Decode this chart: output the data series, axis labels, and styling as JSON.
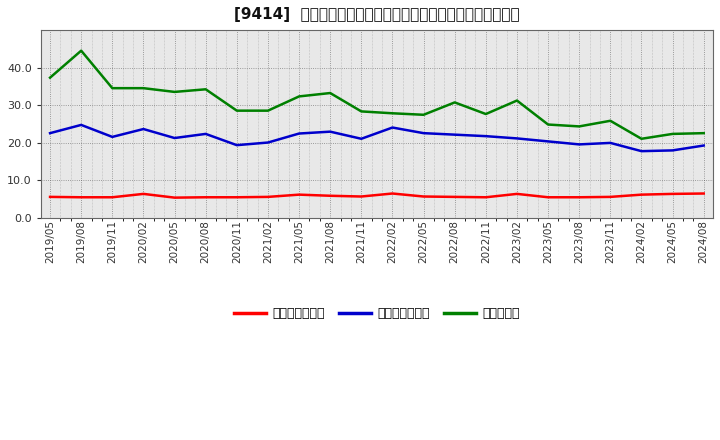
{
  "title": "[9414]  売上債権回転率、買入債務回転率、在庫回転率の推移",
  "dates": [
    "2019/05",
    "2019/08",
    "2019/11",
    "2020/02",
    "2020/05",
    "2020/08",
    "2020/11",
    "2021/02",
    "2021/05",
    "2021/08",
    "2021/11",
    "2022/02",
    "2022/05",
    "2022/08",
    "2022/11",
    "2023/02",
    "2023/05",
    "2023/08",
    "2023/11",
    "2024/02",
    "2024/05",
    "2024/08"
  ],
  "receivables": [
    5.5,
    5.4,
    5.4,
    6.3,
    5.3,
    5.4,
    5.4,
    5.5,
    6.1,
    5.8,
    5.6,
    6.4,
    5.6,
    5.5,
    5.4,
    6.3,
    5.4,
    5.4,
    5.5,
    6.1,
    6.3,
    6.4
  ],
  "payables": [
    22.5,
    24.7,
    21.5,
    23.6,
    21.2,
    22.3,
    19.3,
    20.0,
    22.4,
    22.9,
    21.0,
    24.0,
    22.5,
    22.1,
    21.7,
    21.1,
    20.3,
    19.5,
    19.9,
    17.7,
    17.9,
    19.2
  ],
  "inventory": [
    37.3,
    44.5,
    34.5,
    34.5,
    33.5,
    34.2,
    28.5,
    28.5,
    32.3,
    33.2,
    28.3,
    27.8,
    27.4,
    30.7,
    27.6,
    31.2,
    24.8,
    24.3,
    25.8,
    21.0,
    22.3,
    22.5
  ],
  "receivables_color": "#ff0000",
  "payables_color": "#0000cc",
  "inventory_color": "#008000",
  "background_color": "#ffffff",
  "plot_bg_color": "#e8e8e8",
  "grid_color": "#555555",
  "ylim": [
    0,
    50
  ],
  "yticks": [
    0.0,
    10.0,
    20.0,
    30.0,
    40.0
  ],
  "legend_labels": [
    "売上債権回転率",
    "買入債務回転率",
    "在庫回転率"
  ],
  "title_fontsize": 11,
  "tick_fontsize": 7.5,
  "ytick_fontsize": 8,
  "legend_fontsize": 9,
  "linewidth": 1.8
}
